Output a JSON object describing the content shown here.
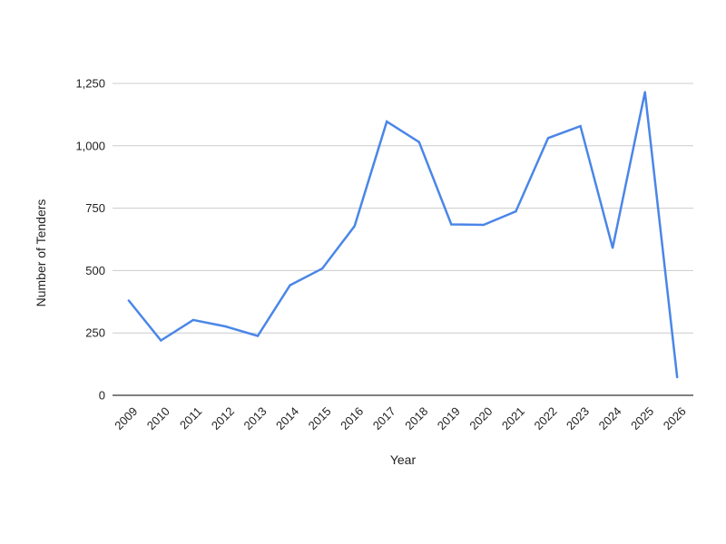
{
  "chart_data": {
    "type": "line",
    "title": "",
    "xlabel": "Year",
    "ylabel": "Number of Tenders",
    "categories": [
      "2009",
      "2010",
      "2011",
      "2012",
      "2013",
      "2014",
      "2015",
      "2016",
      "2017",
      "2018",
      "2019",
      "2020",
      "2021",
      "2022",
      "2023",
      "2024",
      "2025",
      "2026"
    ],
    "series": [
      {
        "values": [
          380,
          220,
          302,
          276,
          238,
          441,
          508,
          678,
          1097,
          1015,
          685,
          683,
          737,
          1031,
          1079,
          591,
          1215,
          72
        ],
        "color": "#4a86e8"
      }
    ],
    "ylim": [
      0,
      1250
    ],
    "yticks": [
      0,
      250,
      500,
      750,
      1000,
      1250
    ],
    "ytick_labels": [
      "0",
      "250",
      "500",
      "750",
      "1,000",
      "1,250"
    ],
    "grid": true,
    "legend": "none"
  }
}
